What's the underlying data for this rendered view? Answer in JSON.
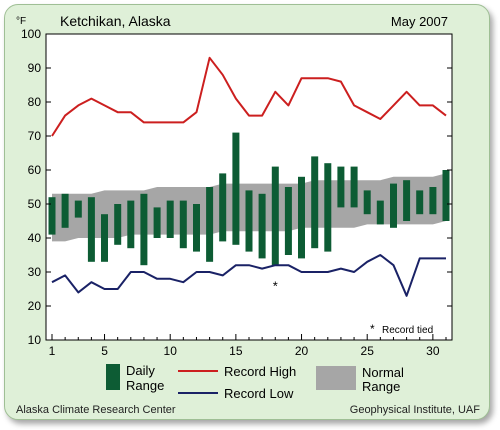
{
  "chart_data": {
    "type": "bar",
    "title": "Ketchikan, Alaska",
    "period": "May 2007",
    "unit": "°F",
    "xlim": [
      1,
      31
    ],
    "ylim": [
      10,
      100
    ],
    "x_ticks": [
      1,
      5,
      10,
      15,
      20,
      25,
      30
    ],
    "y_ticks": [
      10,
      20,
      30,
      40,
      50,
      60,
      70,
      80,
      90,
      100
    ],
    "days": [
      1,
      2,
      3,
      4,
      5,
      6,
      7,
      8,
      9,
      10,
      11,
      12,
      13,
      14,
      15,
      16,
      17,
      18,
      19,
      20,
      21,
      22,
      23,
      24,
      25,
      26,
      27,
      28,
      29,
      30,
      31
    ],
    "daily_range": {
      "name": "Daily Range",
      "color": "#0d5c34",
      "high": [
        52,
        53,
        51,
        52,
        47,
        50,
        51,
        53,
        49,
        51,
        51,
        50,
        55,
        59,
        71,
        54,
        53,
        61,
        55,
        58,
        64,
        62,
        61,
        61,
        54,
        51,
        56,
        57,
        54,
        55,
        60
      ],
      "low": [
        41,
        43,
        46,
        33,
        33,
        38,
        37,
        32,
        40,
        40,
        37,
        36,
        33,
        39,
        38,
        36,
        34,
        32,
        35,
        34,
        37,
        36,
        49,
        49,
        47,
        44,
        43,
        45,
        47,
        47,
        45
      ]
    },
    "record_high": {
      "name": "Record High",
      "color": "#cc1f1f",
      "values": [
        70,
        76,
        79,
        81,
        79,
        77,
        77,
        74,
        74,
        74,
        74,
        77,
        93,
        88,
        81,
        76,
        76,
        83,
        79,
        87,
        87,
        87,
        86,
        79,
        77,
        75,
        79,
        83,
        79,
        79,
        76
      ]
    },
    "record_low": {
      "name": "Record Low",
      "color": "#1a2266",
      "values": [
        27,
        29,
        24,
        27,
        25,
        25,
        30,
        30,
        28,
        28,
        27,
        30,
        30,
        29,
        32,
        32,
        31,
        32,
        32,
        30,
        30,
        30,
        31,
        30,
        33,
        35,
        32,
        23,
        34,
        34,
        34
      ]
    },
    "normal_range": {
      "name": "Normal Range",
      "color": "#a6a6a6",
      "high": [
        53,
        53,
        53,
        53,
        54,
        54,
        54,
        54,
        55,
        55,
        55,
        55,
        55,
        56,
        56,
        56,
        56,
        56,
        56,
        56,
        57,
        57,
        57,
        57,
        57,
        57,
        58,
        58,
        58,
        58,
        59
      ],
      "low": [
        39,
        39,
        40,
        40,
        40,
        40,
        41,
        41,
        41,
        41,
        41,
        41,
        41,
        42,
        42,
        42,
        42,
        42,
        42,
        43,
        43,
        43,
        43,
        43,
        44,
        44,
        44,
        44,
        44,
        44,
        45
      ]
    },
    "record_tied": {
      "days": [
        18
      ],
      "values": [
        26
      ],
      "marker": "*",
      "label": "Record tied"
    }
  },
  "footer": {
    "left": "Alaska Climate Research Center",
    "right": "Geophysical Institute, UAF"
  }
}
